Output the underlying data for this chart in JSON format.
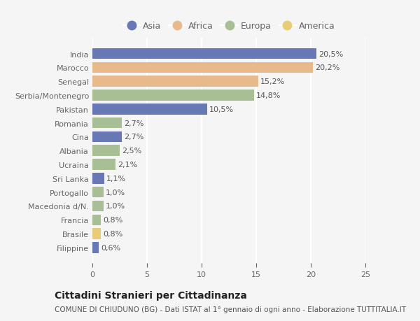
{
  "countries": [
    "India",
    "Marocco",
    "Senegal",
    "Serbia/Montenegro",
    "Pakistan",
    "Romania",
    "Cina",
    "Albania",
    "Ucraina",
    "Sri Lanka",
    "Portogallo",
    "Macedonia d/N.",
    "Francia",
    "Brasile",
    "Filippine"
  ],
  "values": [
    20.5,
    20.2,
    15.2,
    14.8,
    10.5,
    2.7,
    2.7,
    2.5,
    2.1,
    1.1,
    1.0,
    1.0,
    0.8,
    0.8,
    0.6
  ],
  "labels": [
    "20,5%",
    "20,2%",
    "15,2%",
    "14,8%",
    "10,5%",
    "2,7%",
    "2,7%",
    "2,5%",
    "2,1%",
    "1,1%",
    "1,0%",
    "1,0%",
    "0,8%",
    "0,8%",
    "0,6%"
  ],
  "continents": [
    "Asia",
    "Africa",
    "Africa",
    "Europa",
    "Asia",
    "Europa",
    "Asia",
    "Europa",
    "Europa",
    "Asia",
    "Europa",
    "Europa",
    "Europa",
    "America",
    "Asia"
  ],
  "colors": {
    "Asia": "#6878b4",
    "Africa": "#e8b98a",
    "Europa": "#a8bf96",
    "America": "#e8cc7a"
  },
  "legend_order": [
    "Asia",
    "Africa",
    "Europa",
    "America"
  ],
  "xlim": [
    0,
    25
  ],
  "xticks": [
    0,
    5,
    10,
    15,
    20,
    25
  ],
  "title": "Cittadini Stranieri per Cittadinanza",
  "subtitle": "COMUNE DI CHIUDUNO (BG) - Dati ISTAT al 1° gennaio di ogni anno - Elaborazione TUTTITALIA.IT",
  "background_color": "#f5f5f5",
  "grid_color": "#ffffff",
  "bar_height": 0.78,
  "title_fontsize": 10,
  "subtitle_fontsize": 7.5,
  "label_fontsize": 8,
  "tick_fontsize": 8,
  "legend_fontsize": 9
}
